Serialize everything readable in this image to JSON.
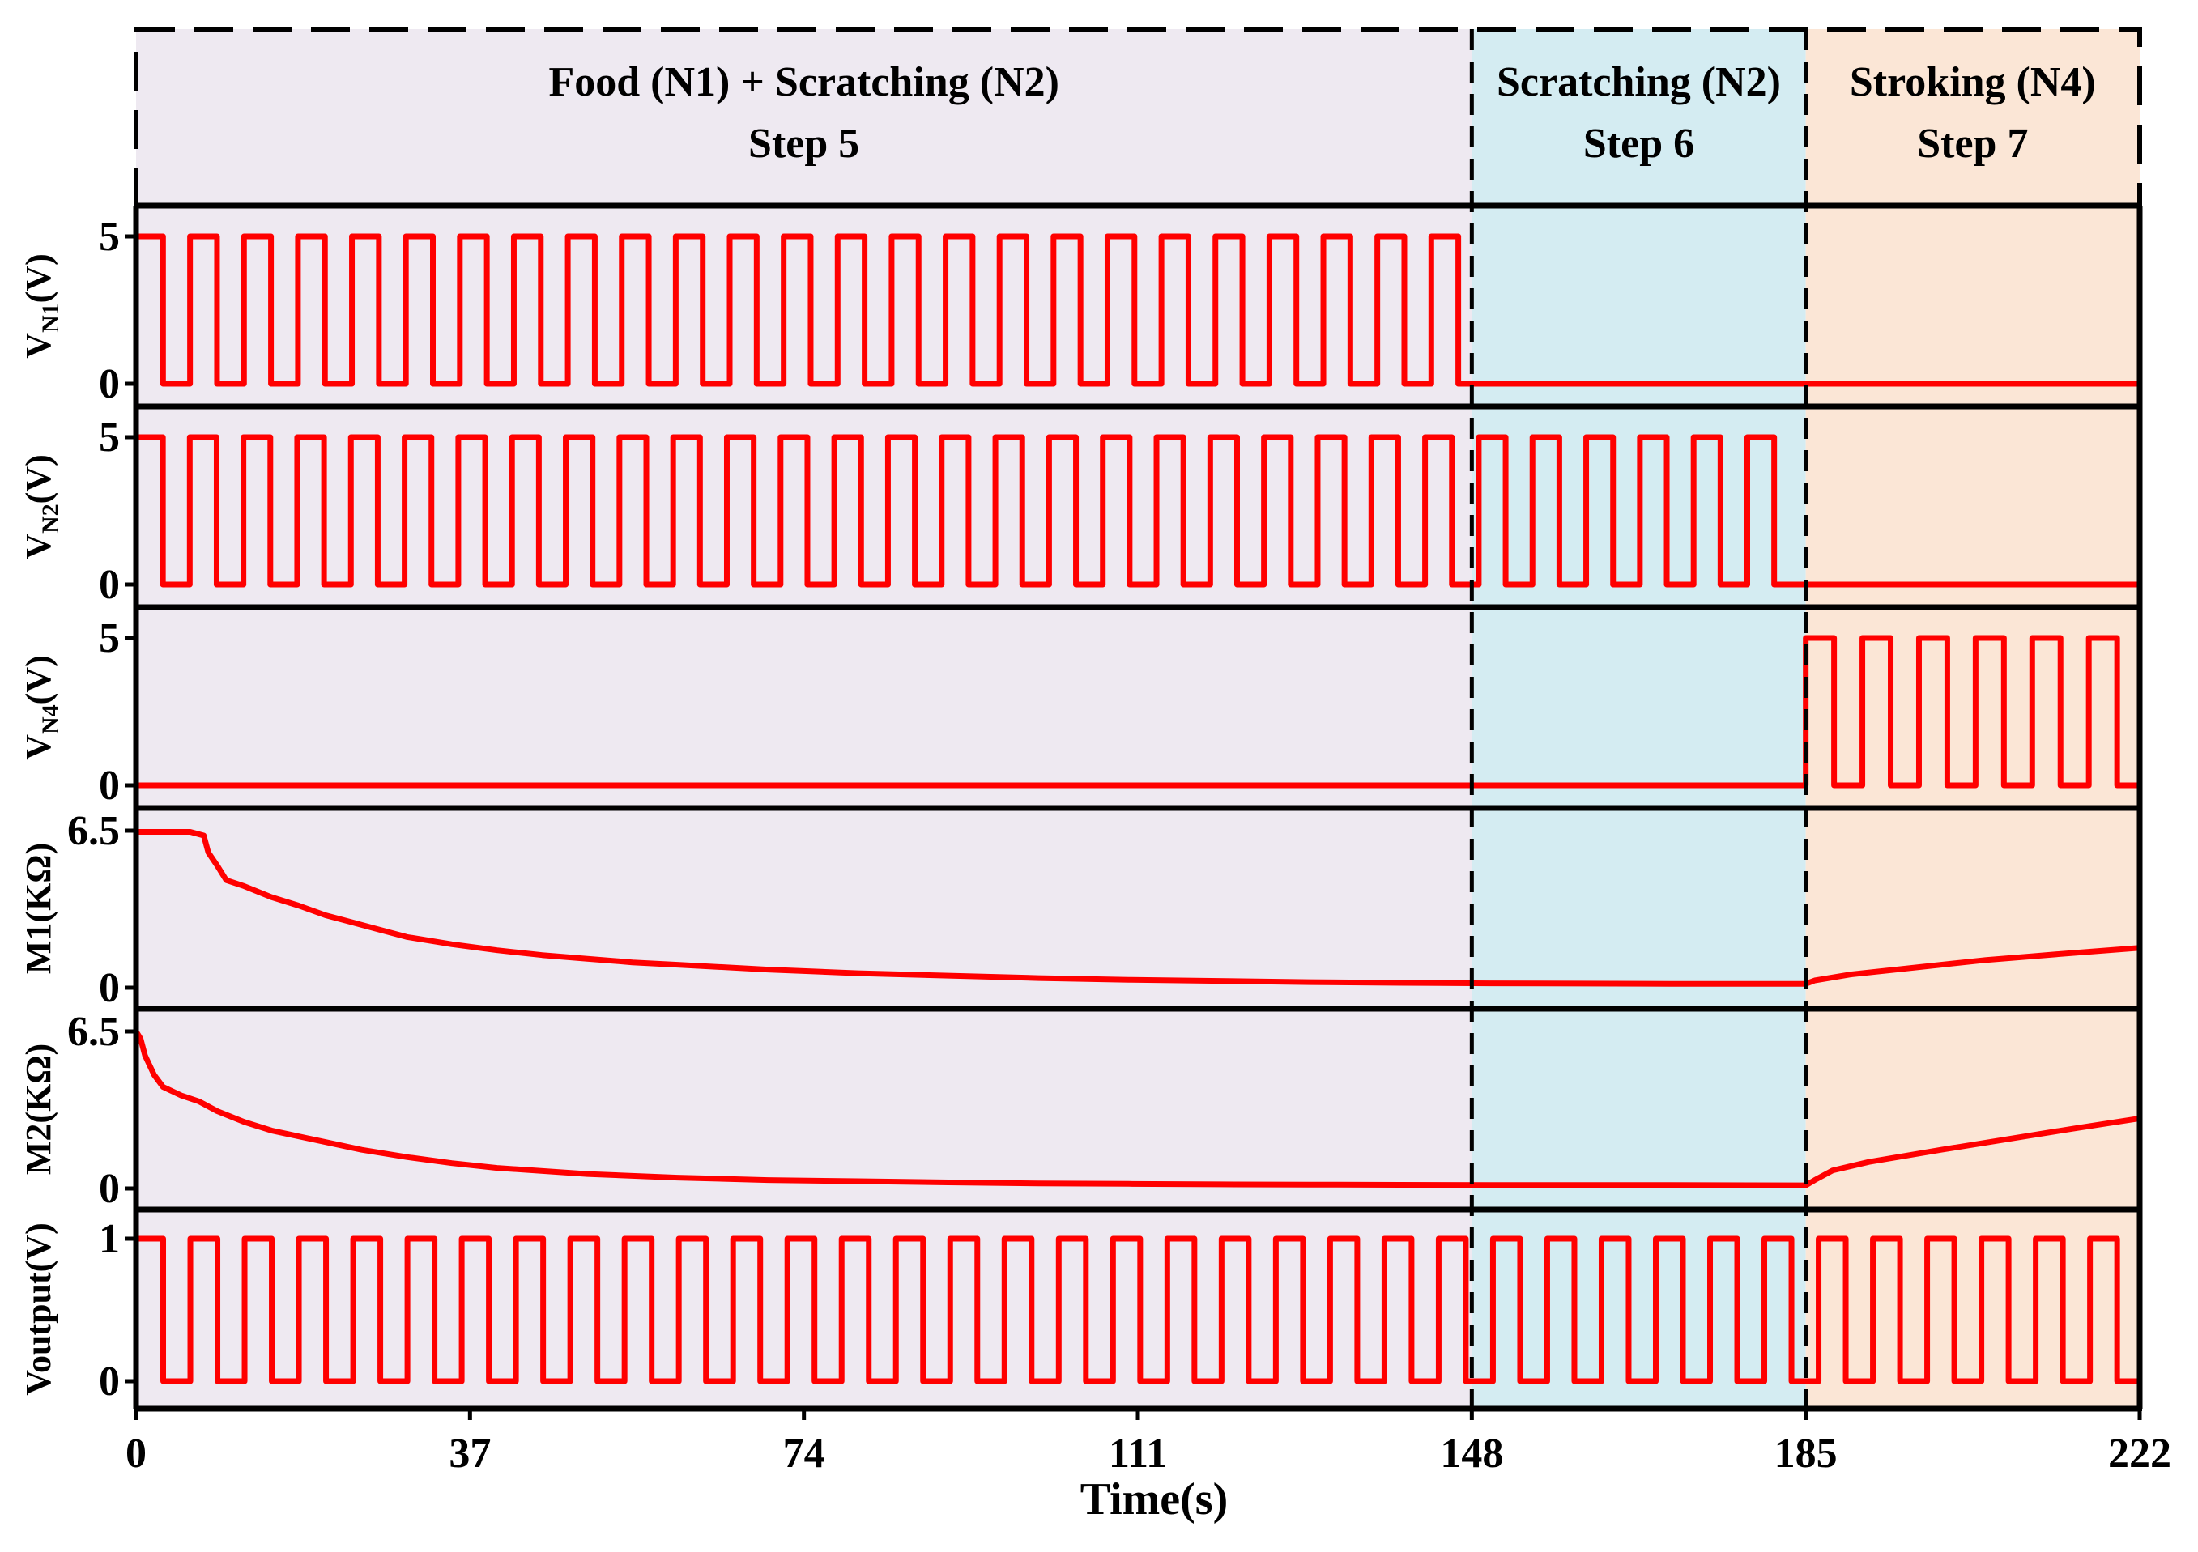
{
  "chart_data": {
    "type": "line",
    "title": "",
    "xlabel": "Time(s)",
    "x_ticks": [
      "0",
      "37",
      "74",
      "111",
      "148",
      "185",
      "222"
    ],
    "xlim": [
      0,
      222
    ],
    "colors": {
      "signal": "#ff0000",
      "step5_bg": "#eee9f1",
      "step6_bg": "#d4ecf2",
      "step7_bg": "#fbe6d6",
      "frame": "#000000"
    },
    "phases": [
      {
        "name": "Food (N1) + Scratching (N2)",
        "step": "Step 5",
        "start": 0,
        "end": 148
      },
      {
        "name": "Scratching (N2)",
        "step": "Step 6",
        "start": 148,
        "end": 185
      },
      {
        "name": "Stroking (N4)",
        "step": "Step 7",
        "start": 185,
        "end": 222
      }
    ],
    "panels": [
      {
        "id": "vn1",
        "ylabel_main": "V",
        "ylabel_sub": "N1",
        "ylabel_tail": "(V)",
        "ylim": [
          0,
          5
        ],
        "yticks": [
          "5",
          "0"
        ],
        "signal": {
          "kind": "pulse",
          "amplitude": 5,
          "on_start": 0,
          "on_end": 146.5,
          "pulses": 25
        }
      },
      {
        "id": "vn2",
        "ylabel_main": "V",
        "ylabel_sub": "N2",
        "ylabel_tail": "(V)",
        "ylim": [
          0,
          5
        ],
        "yticks": [
          "5",
          "0"
        ],
        "signal": {
          "kind": "pulse",
          "amplitude": 5,
          "on_start": 0,
          "on_end": 181.5,
          "pulses": 31
        }
      },
      {
        "id": "vn4",
        "ylabel_main": "V",
        "ylabel_sub": "N4",
        "ylabel_tail": "(V)",
        "ylim": [
          0,
          5
        ],
        "yticks": [
          "5",
          "0"
        ],
        "signal": {
          "kind": "pulse",
          "amplitude": 5,
          "on_start": 185,
          "on_end": 219.5,
          "pulses": 6
        }
      },
      {
        "id": "m1",
        "ylabel_main": "M1(KΩ)",
        "ylabel_sub": "",
        "ylabel_tail": "",
        "ylim": [
          0,
          6.5
        ],
        "yticks": [
          "6.5",
          "0"
        ],
        "signal": {
          "kind": "curve",
          "x": [
            0,
            6,
            7.5,
            8,
            9,
            10,
            12,
            15,
            18,
            21,
            24,
            27,
            30,
            35,
            40,
            45,
            50,
            55,
            60,
            70,
            80,
            90,
            100,
            110,
            120,
            130,
            140,
            150,
            160,
            170,
            185,
            186,
            190,
            195,
            200,
            205,
            210,
            215,
            222
          ],
          "y": [
            6.45,
            6.45,
            6.3,
            5.6,
            5.05,
            4.45,
            4.2,
            3.75,
            3.4,
            3.0,
            2.7,
            2.4,
            2.1,
            1.8,
            1.55,
            1.35,
            1.2,
            1.05,
            0.95,
            0.75,
            0.6,
            0.5,
            0.4,
            0.33,
            0.28,
            0.23,
            0.2,
            0.18,
            0.17,
            0.16,
            0.16,
            0.3,
            0.55,
            0.75,
            0.95,
            1.15,
            1.3,
            1.45,
            1.65
          ]
        }
      },
      {
        "id": "m2",
        "ylabel_main": "M2(KΩ)",
        "ylabel_sub": "",
        "ylabel_tail": "",
        "ylim": [
          0,
          6.5
        ],
        "yticks": [
          "6.5",
          "0"
        ],
        "signal": {
          "kind": "curve",
          "x": [
            0,
            0.5,
            1,
            2,
            3,
            5,
            7,
            9,
            12,
            15,
            20,
            25,
            30,
            35,
            40,
            50,
            60,
            70,
            80,
            90,
            100,
            110,
            120,
            130,
            140,
            150,
            160,
            170,
            185,
            186,
            188,
            192,
            196,
            200,
            205,
            210,
            215,
            222
          ],
          "y": [
            6.5,
            6.2,
            5.5,
            4.7,
            4.2,
            3.85,
            3.6,
            3.2,
            2.75,
            2.4,
            2.0,
            1.6,
            1.3,
            1.05,
            0.85,
            0.6,
            0.45,
            0.35,
            0.3,
            0.25,
            0.21,
            0.19,
            0.17,
            0.16,
            0.15,
            0.14,
            0.14,
            0.14,
            0.13,
            0.35,
            0.75,
            1.1,
            1.35,
            1.6,
            1.9,
            2.2,
            2.5,
            2.9
          ]
        }
      },
      {
        "id": "vout",
        "ylabel_main": "Voutput(V)",
        "ylabel_sub": "",
        "ylabel_tail": "",
        "ylim": [
          0,
          1
        ],
        "yticks": [
          "1",
          "0"
        ],
        "signal": {
          "kind": "pulse",
          "amplitude": 1,
          "on_start": 0,
          "on_end": 219.5,
          "pulses": 37
        }
      }
    ]
  }
}
